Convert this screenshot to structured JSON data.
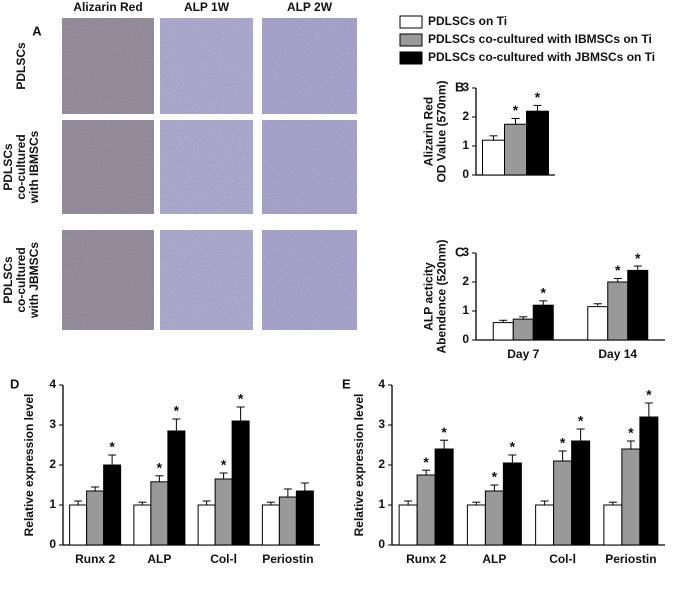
{
  "panel_a": {
    "label": "A",
    "columns": [
      "Alizarin Red",
      "ALP 1W",
      "ALP 2W"
    ],
    "rows": [
      [
        "PDLSCs"
      ],
      [
        "PDLSCs",
        "co-cultured",
        "with IBMSCs"
      ],
      [
        "PDLSCs",
        "co-cultured",
        "with JBMSCs"
      ]
    ]
  },
  "legend": [
    {
      "name": "PDLSCs on Ti",
      "color": "#ffffff"
    },
    {
      "name": "PDLSCs co-cultured with IBMSCs on Ti",
      "color": "#999999"
    },
    {
      "name": "PDLSCs co-cultured with JBMSCs on Ti",
      "color": "#000000"
    }
  ],
  "chart_data": [
    {
      "type": "bar",
      "label": "B",
      "ylabel": [
        "Alizarin Red",
        "OD Value (570nm)"
      ],
      "categories": [
        null
      ],
      "ylim": [
        0,
        3
      ],
      "yticks": [
        0,
        1,
        2,
        3
      ],
      "series": [
        {
          "values": [
            1.2
          ],
          "errors": [
            0.15
          ]
        },
        {
          "values": [
            1.75
          ],
          "errors": [
            0.2
          ]
        },
        {
          "values": [
            2.2
          ],
          "errors": [
            0.2
          ]
        }
      ],
      "annotations": [
        {
          "text": "*",
          "series": 1,
          "category": 0
        },
        {
          "text": "*",
          "series": 2,
          "category": 0
        }
      ]
    },
    {
      "type": "bar",
      "label": "C",
      "ylabel": [
        "ALP acticity",
        "Abendence (520nm)"
      ],
      "categories": [
        "Day 7",
        "Day 14"
      ],
      "ylim": [
        0,
        3
      ],
      "yticks": [
        0,
        1,
        2,
        3
      ],
      "series": [
        {
          "values": [
            0.6,
            1.15
          ],
          "errors": [
            0.08,
            0.1
          ]
        },
        {
          "values": [
            0.72,
            2.0
          ],
          "errors": [
            0.08,
            0.12
          ]
        },
        {
          "values": [
            1.2,
            2.4
          ],
          "errors": [
            0.15,
            0.15
          ]
        }
      ],
      "annotations": [
        {
          "text": "*",
          "series": 2,
          "category": 0
        },
        {
          "text": "*",
          "series": 1,
          "category": 1
        },
        {
          "text": "*",
          "series": 2,
          "category": 1
        }
      ]
    },
    {
      "type": "bar",
      "label": "D",
      "ylabel": [
        "Relative expression level"
      ],
      "categories": [
        "Runx 2",
        "ALP",
        "Col-Ⅰ",
        "Periostin"
      ],
      "ylim": [
        0,
        4
      ],
      "yticks": [
        0,
        1,
        2,
        3,
        4
      ],
      "series": [
        {
          "values": [
            1,
            1,
            1,
            1
          ],
          "errors": [
            0.1,
            0.07,
            0.1,
            0.07
          ]
        },
        {
          "values": [
            1.35,
            1.58,
            1.65,
            1.2
          ],
          "errors": [
            0.1,
            0.15,
            0.15,
            0.2
          ]
        },
        {
          "values": [
            2.0,
            2.85,
            3.1,
            1.35
          ],
          "errors": [
            0.25,
            0.3,
            0.35,
            0.2
          ]
        }
      ],
      "annotations": [
        {
          "text": "*",
          "series": 2,
          "category": 0
        },
        {
          "text": "*",
          "series": 1,
          "category": 1
        },
        {
          "text": "*",
          "series": 2,
          "category": 1
        },
        {
          "text": "*",
          "series": 1,
          "category": 2
        },
        {
          "text": "*",
          "series": 2,
          "category": 2
        }
      ]
    },
    {
      "type": "bar",
      "label": "E",
      "ylabel": [
        "Relative expression level"
      ],
      "categories": [
        "Runx 2",
        "ALP",
        "Col-Ⅰ",
        "Periostin"
      ],
      "ylim": [
        0,
        4
      ],
      "yticks": [
        0,
        1,
        2,
        3,
        4
      ],
      "series": [
        {
          "values": [
            1,
            1,
            1,
            1
          ],
          "errors": [
            0.1,
            0.07,
            0.1,
            0.07
          ]
        },
        {
          "values": [
            1.75,
            1.35,
            2.1,
            2.4
          ],
          "errors": [
            0.12,
            0.15,
            0.25,
            0.2
          ]
        },
        {
          "values": [
            2.4,
            2.05,
            2.6,
            3.2
          ],
          "errors": [
            0.22,
            0.2,
            0.3,
            0.35
          ]
        }
      ],
      "annotations": [
        {
          "text": "*",
          "series": 1,
          "category": 0
        },
        {
          "text": "*",
          "series": 2,
          "category": 0
        },
        {
          "text": "*",
          "series": 1,
          "category": 1
        },
        {
          "text": "*",
          "series": 2,
          "category": 1
        },
        {
          "text": "*",
          "series": 1,
          "category": 2
        },
        {
          "text": "*",
          "series": 2,
          "category": 2
        },
        {
          "text": "*",
          "series": 1,
          "category": 3
        },
        {
          "text": "*",
          "series": 2,
          "category": 3
        }
      ]
    }
  ]
}
